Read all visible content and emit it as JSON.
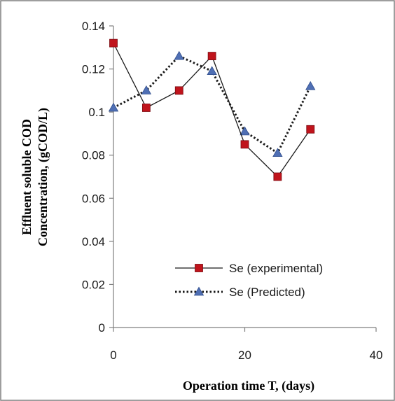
{
  "chart_data": {
    "type": "line",
    "title": "",
    "xlabel": "Operation time T, (days)",
    "ylabel_lines": [
      "Effluent soluble COD",
      "Concentration, (gCOD/L)"
    ],
    "xlim": [
      0,
      40
    ],
    "ylim": [
      0,
      0.14
    ],
    "x_ticks": [
      0,
      20,
      40
    ],
    "x_tick_labels": [
      "0",
      "20",
      "40"
    ],
    "y_ticks": [
      0,
      0.02,
      0.04,
      0.06,
      0.08,
      0.1,
      0.12,
      0.14
    ],
    "y_tick_labels": [
      "0",
      "0.02",
      "0.04",
      "0.06",
      "0.08",
      "0.1",
      "0.12",
      "0.14"
    ],
    "grid": false,
    "legend_position": "lower-right",
    "series": [
      {
        "name": "Se (experimental)",
        "x": [
          0,
          5,
          10,
          15,
          20,
          25,
          30
        ],
        "y": [
          0.132,
          0.102,
          0.11,
          0.126,
          0.085,
          0.07,
          0.092
        ],
        "line_style": "solid",
        "line_color": "#1a1a1a",
        "marker": "square",
        "marker_color": "#c0141c"
      },
      {
        "name": "Se (Predicted)",
        "x": [
          0,
          5,
          10,
          15,
          20,
          25,
          30
        ],
        "y": [
          0.102,
          0.11,
          0.126,
          0.119,
          0.091,
          0.081,
          0.112
        ],
        "line_style": "dotted",
        "line_color": "#1a1a1a",
        "marker": "triangle",
        "marker_color": "#4f6fb4"
      }
    ]
  }
}
